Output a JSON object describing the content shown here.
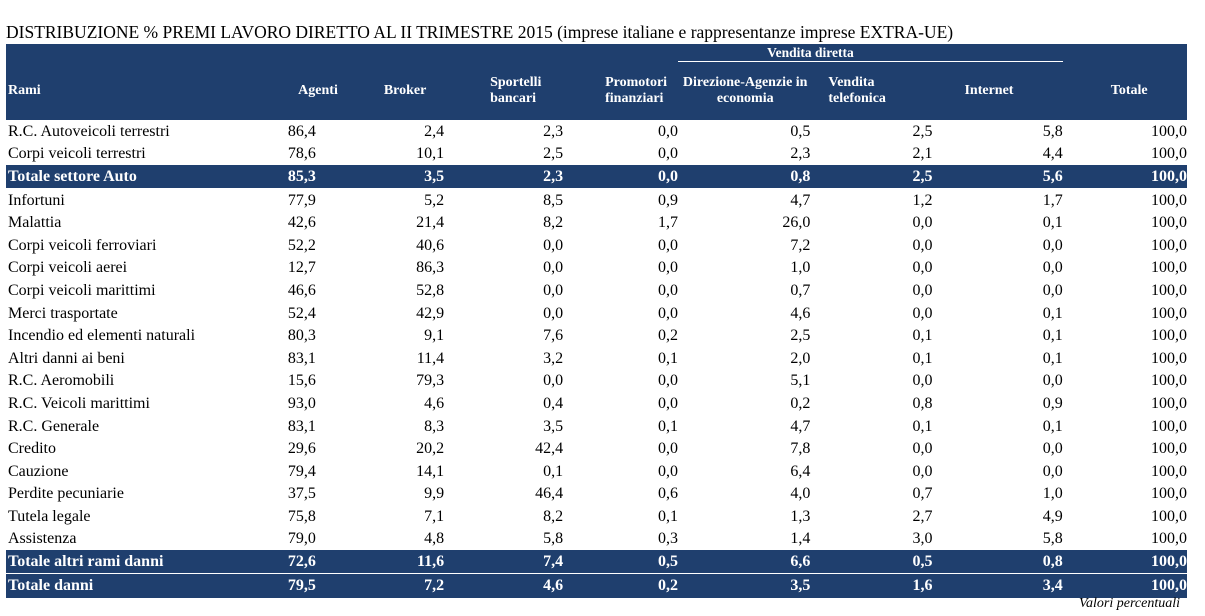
{
  "title": "DISTRIBUZIONE % PREMI LAVORO DIRETTO AL II TRIMESTRE 2015 (imprese italiane e rappresentanze imprese EXTRA-UE)",
  "headers": {
    "group_label": "Vendita diretta",
    "rami": "Rami",
    "agenti": "Agenti",
    "broker": "Broker",
    "sportelli": "Sportelli bancari",
    "promotori": "Promotori finanziari",
    "direzione": "Direzione-Agenzie in economia",
    "vendita_telefonica": "Vendita telefonica",
    "internet": "Internet",
    "totale": "Totale"
  },
  "rows": [
    {
      "label": "R.C. Autoveicoli terrestri",
      "values": [
        "86,4",
        "2,4",
        "2,3",
        "0,0",
        "0,5",
        "2,5",
        "5,8",
        "100,0"
      ],
      "total": false
    },
    {
      "label": "Corpi veicoli terrestri",
      "values": [
        "78,6",
        "10,1",
        "2,5",
        "0,0",
        "2,3",
        "2,1",
        "4,4",
        "100,0"
      ],
      "total": false
    },
    {
      "label": "Totale settore Auto",
      "values": [
        "85,3",
        "3,5",
        "2,3",
        "0,0",
        "0,8",
        "2,5",
        "5,6",
        "100,0"
      ],
      "total": true
    },
    {
      "label": "Infortuni",
      "values": [
        "77,9",
        "5,2",
        "8,5",
        "0,9",
        "4,7",
        "1,2",
        "1,7",
        "100,0"
      ],
      "total": false
    },
    {
      "label": "Malattia",
      "values": [
        "42,6",
        "21,4",
        "8,2",
        "1,7",
        "26,0",
        "0,0",
        "0,1",
        "100,0"
      ],
      "total": false
    },
    {
      "label": "Corpi veicoli ferroviari",
      "values": [
        "52,2",
        "40,6",
        "0,0",
        "0,0",
        "7,2",
        "0,0",
        "0,0",
        "100,0"
      ],
      "total": false
    },
    {
      "label": "Corpi veicoli aerei",
      "values": [
        "12,7",
        "86,3",
        "0,0",
        "0,0",
        "1,0",
        "0,0",
        "0,0",
        "100,0"
      ],
      "total": false
    },
    {
      "label": "Corpi veicoli marittimi",
      "values": [
        "46,6",
        "52,8",
        "0,0",
        "0,0",
        "0,7",
        "0,0",
        "0,0",
        "100,0"
      ],
      "total": false
    },
    {
      "label": "Merci trasportate",
      "values": [
        "52,4",
        "42,9",
        "0,0",
        "0,0",
        "4,6",
        "0,0",
        "0,1",
        "100,0"
      ],
      "total": false
    },
    {
      "label": "Incendio ed elementi naturali",
      "values": [
        "80,3",
        "9,1",
        "7,6",
        "0,2",
        "2,5",
        "0,1",
        "0,1",
        "100,0"
      ],
      "total": false
    },
    {
      "label": "Altri danni ai beni",
      "values": [
        "83,1",
        "11,4",
        "3,2",
        "0,1",
        "2,0",
        "0,1",
        "0,1",
        "100,0"
      ],
      "total": false
    },
    {
      "label": "R.C. Aeromobili",
      "values": [
        "15,6",
        "79,3",
        "0,0",
        "0,0",
        "5,1",
        "0,0",
        "0,0",
        "100,0"
      ],
      "total": false
    },
    {
      "label": "R.C. Veicoli marittimi",
      "values": [
        "93,0",
        "4,6",
        "0,4",
        "0,0",
        "0,2",
        "0,8",
        "0,9",
        "100,0"
      ],
      "total": false
    },
    {
      "label": "R.C. Generale",
      "values": [
        "83,1",
        "8,3",
        "3,5",
        "0,1",
        "4,7",
        "0,1",
        "0,1",
        "100,0"
      ],
      "total": false
    },
    {
      "label": "Credito",
      "values": [
        "29,6",
        "20,2",
        "42,4",
        "0,0",
        "7,8",
        "0,0",
        "0,0",
        "100,0"
      ],
      "total": false
    },
    {
      "label": "Cauzione",
      "values": [
        "79,4",
        "14,1",
        "0,1",
        "0,0",
        "6,4",
        "0,0",
        "0,0",
        "100,0"
      ],
      "total": false
    },
    {
      "label": "Perdite pecuniarie",
      "values": [
        "37,5",
        "9,9",
        "46,4",
        "0,6",
        "4,0",
        "0,7",
        "1,0",
        "100,0"
      ],
      "total": false
    },
    {
      "label": "Tutela legale",
      "values": [
        "75,8",
        "7,1",
        "8,2",
        "0,1",
        "1,3",
        "2,7",
        "4,9",
        "100,0"
      ],
      "total": false
    },
    {
      "label": "Assistenza",
      "values": [
        "79,0",
        "4,8",
        "5,8",
        "0,3",
        "1,4",
        "3,0",
        "5,8",
        "100,0"
      ],
      "total": false
    },
    {
      "label": "Totale altri rami danni",
      "values": [
        "72,6",
        "11,6",
        "7,4",
        "0,5",
        "6,6",
        "0,5",
        "0,8",
        "100,0"
      ],
      "total": true
    },
    {
      "label": "Totale danni",
      "values": [
        "79,5",
        "7,2",
        "4,6",
        "0,2",
        "3,5",
        "1,6",
        "3,4",
        "100,0"
      ],
      "total": true
    }
  ],
  "footnote": "Valori percentuali"
}
